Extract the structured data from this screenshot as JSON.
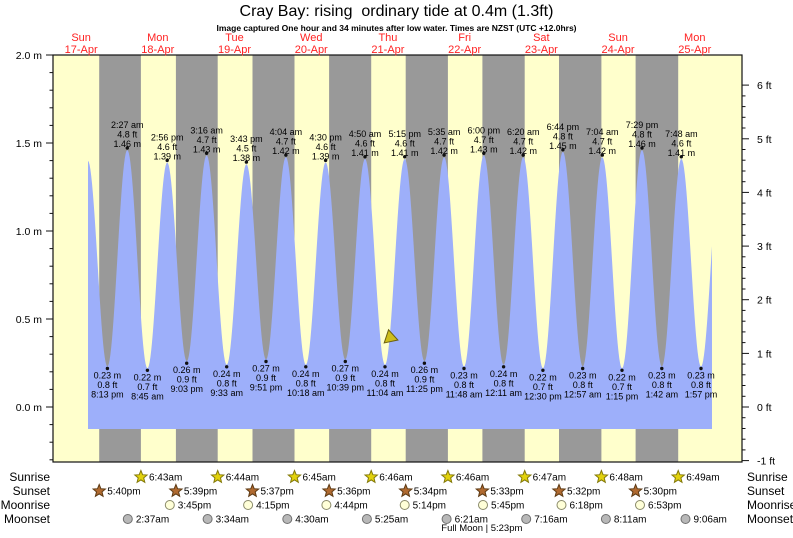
{
  "title": "Cray Bay: rising  ordinary tide at 0.4m (1.3ft)",
  "subtitle": "Image captured One hour and 34 minutes after low water. Times are NZST (UTC +12.0hrs)",
  "colors": {
    "day_bg": "#ffffcc",
    "night_bg": "#999999",
    "tide_fill": "#9daffa",
    "date_red": "#ff2222",
    "axis_black": "#111111",
    "sunrise_star": "#e2d20c",
    "sunrise_star_edge": "#83790a",
    "sunset_star": "#b06a30",
    "sunset_star_edge": "#5d3a14",
    "moonrise_circle": "#ffffd8",
    "moonrise_circle_edge": "#8a8a6a",
    "moonset_circle": "#b8b8b8",
    "moonset_circle_edge": "#6f6f6f",
    "marker_fill": "#cdbd1b",
    "marker_edge": "#6a5f10"
  },
  "days": [
    {
      "name": "Sun",
      "date": "17-Apr"
    },
    {
      "name": "Mon",
      "date": "18-Apr"
    },
    {
      "name": "Tue",
      "date": "19-Apr"
    },
    {
      "name": "Wed",
      "date": "20-Apr"
    },
    {
      "name": "Thu",
      "date": "21-Apr"
    },
    {
      "name": "Fri",
      "date": "22-Apr"
    },
    {
      "name": "Sat",
      "date": "23-Apr"
    },
    {
      "name": "Sun",
      "date": "24-Apr"
    },
    {
      "name": "Mon",
      "date": "25-Apr"
    }
  ],
  "axes": {
    "left_labels": [
      {
        "text": "2.0 m",
        "value": 2.0
      },
      {
        "text": "1.5 m",
        "value": 1.5
      },
      {
        "text": "1.0 m",
        "value": 1.0
      },
      {
        "text": "0.5 m",
        "value": 0.5
      },
      {
        "text": "0.0 m",
        "value": 0.0
      }
    ],
    "right_labels": [
      {
        "text": "6 ft",
        "value": 6
      },
      {
        "text": "5 ft",
        "value": 5
      },
      {
        "text": "4 ft",
        "value": 4
      },
      {
        "text": "3 ft",
        "value": 3
      },
      {
        "text": "2 ft",
        "value": 2
      },
      {
        "text": "1 ft",
        "value": 1
      },
      {
        "text": "0 ft",
        "value": 0
      },
      {
        "text": "-1 ft",
        "value": -1
      }
    ]
  },
  "chart_data": {
    "type": "area",
    "y_unit_left": "m",
    "y_unit_right": "ft",
    "ylim_m": [
      -0.3125,
      2.0
    ],
    "tide_events": [
      {
        "day": "17-Apr",
        "time": "8:13 pm",
        "type": "low",
        "m": 0.23,
        "ft": 0.8
      },
      {
        "day": "18-Apr",
        "time": "2:27 am",
        "type": "high",
        "m": 1.46,
        "ft": 4.8
      },
      {
        "day": "18-Apr",
        "time": "8:45 am",
        "type": "low",
        "m": 0.22,
        "ft": 0.7
      },
      {
        "day": "18-Apr",
        "time": "2:56 pm",
        "type": "high",
        "m": 1.39,
        "ft": 4.6
      },
      {
        "day": "18-Apr",
        "time": "9:03 pm",
        "type": "low",
        "m": 0.26,
        "ft": 0.9
      },
      {
        "day": "19-Apr",
        "time": "3:16 am",
        "type": "high",
        "m": 1.43,
        "ft": 4.7
      },
      {
        "day": "19-Apr",
        "time": "9:33 am",
        "type": "low",
        "m": 0.24,
        "ft": 0.8
      },
      {
        "day": "19-Apr",
        "time": "3:43 pm",
        "type": "high",
        "m": 1.38,
        "ft": 4.5
      },
      {
        "day": "19-Apr",
        "time": "9:51 pm",
        "type": "low",
        "m": 0.27,
        "ft": 0.9
      },
      {
        "day": "20-Apr",
        "time": "4:04 am",
        "type": "high",
        "m": 1.42,
        "ft": 4.7
      },
      {
        "day": "20-Apr",
        "time": "10:18 am",
        "type": "low",
        "m": 0.24,
        "ft": 0.8
      },
      {
        "day": "20-Apr",
        "time": "4:30 pm",
        "type": "high",
        "m": 1.39,
        "ft": 4.6
      },
      {
        "day": "20-Apr",
        "time": "10:39 pm",
        "type": "low",
        "m": 0.27,
        "ft": 0.9
      },
      {
        "day": "21-Apr",
        "time": "4:50 am",
        "type": "high",
        "m": 1.41,
        "ft": 4.6
      },
      {
        "day": "21-Apr",
        "time": "11:04 am",
        "type": "low",
        "m": 0.24,
        "ft": 0.8
      },
      {
        "day": "21-Apr",
        "time": "5:15 pm",
        "type": "high",
        "m": 1.41,
        "ft": 4.6
      },
      {
        "day": "21-Apr",
        "time": "11:25 pm",
        "type": "low",
        "m": 0.26,
        "ft": 0.9
      },
      {
        "day": "22-Apr",
        "time": "5:35 am",
        "type": "high",
        "m": 1.42,
        "ft": 4.7
      },
      {
        "day": "22-Apr",
        "time": "11:48 am",
        "type": "low",
        "m": 0.23,
        "ft": 0.8
      },
      {
        "day": "22-Apr",
        "time": "6:00 pm",
        "type": "high",
        "m": 1.43,
        "ft": 4.7
      },
      {
        "day": "23-Apr",
        "time": "12:11 am",
        "type": "low",
        "m": 0.24,
        "ft": 0.8
      },
      {
        "day": "23-Apr",
        "time": "6:20 am",
        "type": "high",
        "m": 1.42,
        "ft": 4.7
      },
      {
        "day": "23-Apr",
        "time": "12:30 pm",
        "type": "low",
        "m": 0.22,
        "ft": 0.7
      },
      {
        "day": "23-Apr",
        "time": "6:44 pm",
        "type": "high",
        "m": 1.45,
        "ft": 4.8
      },
      {
        "day": "24-Apr",
        "time": "12:57 am",
        "type": "low",
        "m": 0.23,
        "ft": 0.8
      },
      {
        "day": "24-Apr",
        "time": "7:04 am",
        "type": "high",
        "m": 1.42,
        "ft": 4.7
      },
      {
        "day": "24-Apr",
        "time": "1:15 pm",
        "type": "low",
        "m": 0.22,
        "ft": 0.7
      },
      {
        "day": "24-Apr",
        "time": "7:29 pm",
        "type": "high",
        "m": 1.46,
        "ft": 4.8
      },
      {
        "day": "25-Apr",
        "time": "1:42 am",
        "type": "low",
        "m": 0.23,
        "ft": 0.8
      },
      {
        "day": "25-Apr",
        "time": "7:48 am",
        "type": "high",
        "m": 1.41,
        "ft": 4.6
      },
      {
        "day": "25-Apr",
        "time": "1:57 pm",
        "type": "low",
        "m": 0.23,
        "ft": 0.8
      }
    ],
    "unlabeled_start_high": {
      "day": "17-Apr",
      "time": "2:05 pm",
      "m": 1.4
    },
    "curve_end_virtual_high": {
      "day": "25-Apr",
      "time": "8:10 pm",
      "m": 1.4
    },
    "marker": {
      "day": "21-Apr",
      "time": "12:38 pm",
      "m": 0.4
    }
  },
  "sun_moon": {
    "rows": [
      {
        "label": "Sunrise",
        "icon": "sunrise-star-icon",
        "entries": [
          {
            "day": "18-Apr",
            "time": "6:43am"
          },
          {
            "day": "19-Apr",
            "time": "6:44am"
          },
          {
            "day": "20-Apr",
            "time": "6:45am"
          },
          {
            "day": "21-Apr",
            "time": "6:46am"
          },
          {
            "day": "22-Apr",
            "time": "6:46am"
          },
          {
            "day": "23-Apr",
            "time": "6:47am"
          },
          {
            "day": "24-Apr",
            "time": "6:48am"
          },
          {
            "day": "25-Apr",
            "time": "6:49am"
          }
        ]
      },
      {
        "label": "Sunset",
        "icon": "sunset-star-icon",
        "entries": [
          {
            "day": "17-Apr",
            "time": "5:40pm"
          },
          {
            "day": "18-Apr",
            "time": "5:39pm"
          },
          {
            "day": "19-Apr",
            "time": "5:37pm"
          },
          {
            "day": "20-Apr",
            "time": "5:36pm"
          },
          {
            "day": "21-Apr",
            "time": "5:34pm"
          },
          {
            "day": "22-Apr",
            "time": "5:33pm"
          },
          {
            "day": "23-Apr",
            "time": "5:32pm"
          },
          {
            "day": "24-Apr",
            "time": "5:30pm"
          }
        ]
      },
      {
        "label": "Moonrise",
        "icon": "moonrise-circle-icon",
        "entries": [
          {
            "day": "18-Apr",
            "time": "3:45pm"
          },
          {
            "day": "19-Apr",
            "time": "4:15pm"
          },
          {
            "day": "20-Apr",
            "time": "4:44pm"
          },
          {
            "day": "21-Apr",
            "time": "5:14pm"
          },
          {
            "day": "22-Apr",
            "time": "5:45pm"
          },
          {
            "day": "23-Apr",
            "time": "6:18pm"
          },
          {
            "day": "24-Apr",
            "time": "6:53pm"
          }
        ]
      },
      {
        "label": "Moonset",
        "icon": "moonset-circle-icon",
        "entries": [
          {
            "day": "18-Apr",
            "time": "2:37am"
          },
          {
            "day": "19-Apr",
            "time": "3:34am"
          },
          {
            "day": "20-Apr",
            "time": "4:30am"
          },
          {
            "day": "21-Apr",
            "time": "5:25am"
          },
          {
            "day": "22-Apr",
            "time": "6:21am"
          },
          {
            "day": "23-Apr",
            "time": "7:16am"
          },
          {
            "day": "24-Apr",
            "time": "8:11am"
          },
          {
            "day": "25-Apr",
            "time": "9:06am"
          }
        ]
      }
    ],
    "full_moon": {
      "label": "Full Moon | 5:23pm",
      "day": "22-Apr",
      "time": "5:23pm"
    }
  }
}
